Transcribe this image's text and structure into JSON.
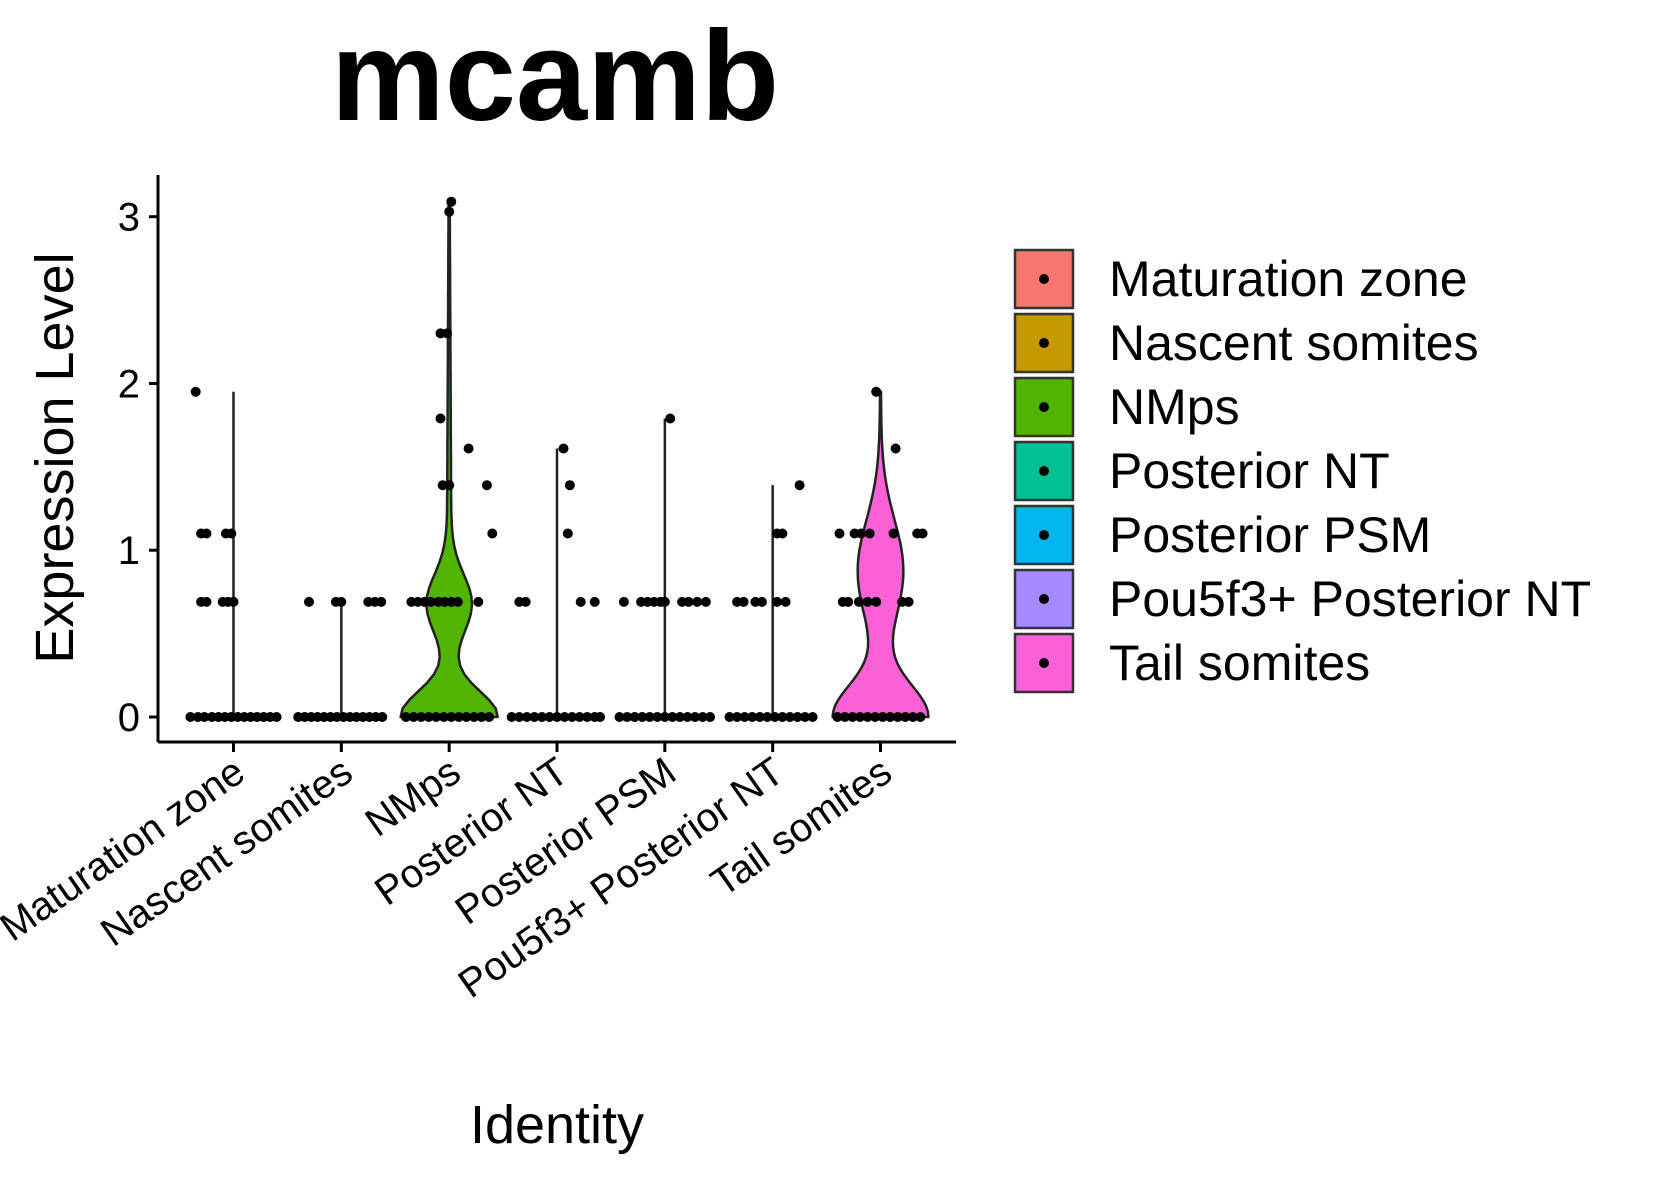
{
  "chart_data": {
    "type": "violin",
    "title": "mcamb",
    "xlabel": "Identity",
    "ylabel": "Expression Level",
    "ylim": [
      -0.15,
      3.25
    ],
    "yticks": [
      "0",
      "1",
      "2",
      "3"
    ],
    "ytick_values": [
      0,
      1,
      2,
      3
    ],
    "categories": [
      "Maturation zone",
      "Nascent somites",
      "NMps",
      "Posterior NT",
      "Posterior PSM",
      "Pou5f3+ Posterior NT",
      "Tail somites"
    ],
    "legend_position": "right",
    "colors": [
      "#F8766D",
      "#C49A00",
      "#53B400",
      "#00C094",
      "#00B6EB",
      "#A58AFF",
      "#FB61D7"
    ],
    "series": [
      {
        "name": "Maturation zone",
        "max": 1.95,
        "points": [
          [
            -0.35,
            1.95
          ],
          [
            -0.3,
            1.1
          ],
          [
            -0.25,
            1.1
          ],
          [
            -0.07,
            1.1
          ],
          [
            -0.02,
            1.1
          ],
          [
            -0.3,
            0.69
          ],
          [
            -0.25,
            0.69
          ],
          [
            -0.1,
            0.69
          ],
          [
            -0.05,
            0.69
          ],
          [
            0.0,
            0.69
          ],
          [
            -0.4,
            0
          ],
          [
            -0.33,
            0
          ],
          [
            -0.27,
            0
          ],
          [
            -0.2,
            0
          ],
          [
            -0.14,
            0
          ],
          [
            -0.08,
            0
          ],
          [
            -0.02,
            0
          ],
          [
            0.04,
            0
          ],
          [
            0.1,
            0
          ],
          [
            0.16,
            0
          ],
          [
            0.22,
            0
          ],
          [
            0.28,
            0
          ],
          [
            0.34,
            0
          ],
          [
            0.4,
            0
          ]
        ]
      },
      {
        "name": "Nascent somites",
        "max": 0.69,
        "points": [
          [
            -0.3,
            0.69
          ],
          [
            -0.05,
            0.69
          ],
          [
            0.0,
            0.69
          ],
          [
            0.25,
            0.69
          ],
          [
            0.31,
            0.69
          ],
          [
            0.37,
            0.69
          ],
          [
            -0.4,
            0
          ],
          [
            -0.34,
            0
          ],
          [
            -0.28,
            0
          ],
          [
            -0.22,
            0
          ],
          [
            -0.16,
            0
          ],
          [
            -0.1,
            0
          ],
          [
            -0.04,
            0
          ],
          [
            0.02,
            0
          ],
          [
            0.08,
            0
          ],
          [
            0.14,
            0
          ],
          [
            0.2,
            0
          ],
          [
            0.26,
            0
          ],
          [
            0.32,
            0
          ],
          [
            0.38,
            0
          ]
        ]
      },
      {
        "name": "NMps",
        "max": 3.09,
        "points": [
          [
            0.02,
            3.09
          ],
          [
            0.0,
            3.03
          ],
          [
            -0.08,
            2.3
          ],
          [
            -0.02,
            2.3
          ],
          [
            -0.08,
            1.79
          ],
          [
            0.18,
            1.61
          ],
          [
            -0.06,
            1.39
          ],
          [
            0.0,
            1.39
          ],
          [
            0.35,
            1.39
          ],
          [
            0.4,
            1.1
          ],
          [
            -0.35,
            0.69
          ],
          [
            -0.29,
            0.69
          ],
          [
            -0.23,
            0.69
          ],
          [
            -0.17,
            0.69
          ],
          [
            -0.1,
            0.69
          ],
          [
            -0.04,
            0.69
          ],
          [
            0.02,
            0.69
          ],
          [
            0.08,
            0.69
          ],
          [
            0.27,
            0.69
          ],
          [
            -0.4,
            0
          ],
          [
            -0.33,
            0
          ],
          [
            -0.26,
            0
          ],
          [
            -0.19,
            0
          ],
          [
            -0.12,
            0
          ],
          [
            -0.05,
            0
          ],
          [
            0.02,
            0
          ],
          [
            0.09,
            0
          ],
          [
            0.16,
            0
          ],
          [
            0.23,
            0
          ],
          [
            0.3,
            0
          ],
          [
            0.37,
            0
          ]
        ]
      },
      {
        "name": "Posterior NT",
        "max": 1.61,
        "points": [
          [
            0.06,
            1.61
          ],
          [
            0.12,
            1.39
          ],
          [
            0.1,
            1.1
          ],
          [
            -0.35,
            0.69
          ],
          [
            -0.29,
            0.69
          ],
          [
            0.22,
            0.69
          ],
          [
            0.35,
            0.69
          ],
          [
            -0.42,
            0
          ],
          [
            -0.35,
            0
          ],
          [
            -0.28,
            0
          ],
          [
            -0.21,
            0
          ],
          [
            -0.14,
            0
          ],
          [
            -0.07,
            0
          ],
          [
            0.0,
            0
          ],
          [
            0.07,
            0
          ],
          [
            0.14,
            0
          ],
          [
            0.21,
            0
          ],
          [
            0.28,
            0
          ],
          [
            0.35,
            0
          ],
          [
            0.4,
            0
          ]
        ]
      },
      {
        "name": "Posterior PSM",
        "max": 1.79,
        "points": [
          [
            0.05,
            1.79
          ],
          [
            -0.38,
            0.69
          ],
          [
            -0.22,
            0.69
          ],
          [
            -0.16,
            0.69
          ],
          [
            -0.1,
            0.69
          ],
          [
            -0.04,
            0.69
          ],
          [
            0.0,
            0.69
          ],
          [
            0.16,
            0.69
          ],
          [
            0.22,
            0.69
          ],
          [
            0.3,
            0.69
          ],
          [
            0.38,
            0.69
          ],
          [
            -0.42,
            0
          ],
          [
            -0.35,
            0
          ],
          [
            -0.28,
            0
          ],
          [
            -0.21,
            0
          ],
          [
            -0.14,
            0
          ],
          [
            -0.07,
            0
          ],
          [
            0.0,
            0
          ],
          [
            0.07,
            0
          ],
          [
            0.14,
            0
          ],
          [
            0.21,
            0
          ],
          [
            0.28,
            0
          ],
          [
            0.35,
            0
          ],
          [
            0.42,
            0
          ]
        ]
      },
      {
        "name": "Pou5f3+ Posterior NT",
        "max": 1.39,
        "points": [
          [
            0.25,
            1.39
          ],
          [
            0.04,
            1.1
          ],
          [
            0.09,
            1.1
          ],
          [
            -0.33,
            0.69
          ],
          [
            -0.27,
            0.69
          ],
          [
            -0.16,
            0.69
          ],
          [
            -0.1,
            0.69
          ],
          [
            0.04,
            0.69
          ],
          [
            0.12,
            0.69
          ],
          [
            -0.4,
            0
          ],
          [
            -0.33,
            0
          ],
          [
            -0.26,
            0
          ],
          [
            -0.19,
            0
          ],
          [
            -0.12,
            0
          ],
          [
            -0.05,
            0
          ],
          [
            0.02,
            0
          ],
          [
            0.09,
            0
          ],
          [
            0.16,
            0
          ],
          [
            0.23,
            0
          ],
          [
            0.3,
            0
          ],
          [
            0.37,
            0
          ]
        ]
      },
      {
        "name": "Tail somites",
        "max": 1.95,
        "points": [
          [
            -0.04,
            1.95
          ],
          [
            0.14,
            1.61
          ],
          [
            -0.38,
            1.1
          ],
          [
            -0.24,
            1.1
          ],
          [
            -0.18,
            1.1
          ],
          [
            -0.1,
            1.1
          ],
          [
            0.12,
            1.1
          ],
          [
            0.34,
            1.1
          ],
          [
            0.39,
            1.1
          ],
          [
            -0.35,
            0.69
          ],
          [
            -0.3,
            0.69
          ],
          [
            -0.2,
            0.69
          ],
          [
            -0.12,
            0.69
          ],
          [
            -0.04,
            0.69
          ],
          [
            0.2,
            0.69
          ],
          [
            0.26,
            0.69
          ],
          [
            -0.4,
            0
          ],
          [
            -0.33,
            0
          ],
          [
            -0.26,
            0
          ],
          [
            -0.19,
            0
          ],
          [
            -0.12,
            0
          ],
          [
            -0.05,
            0
          ],
          [
            0.02,
            0
          ],
          [
            0.09,
            0
          ],
          [
            0.16,
            0
          ],
          [
            0.23,
            0
          ],
          [
            0.3,
            0
          ],
          [
            0.37,
            0
          ]
        ]
      }
    ]
  }
}
